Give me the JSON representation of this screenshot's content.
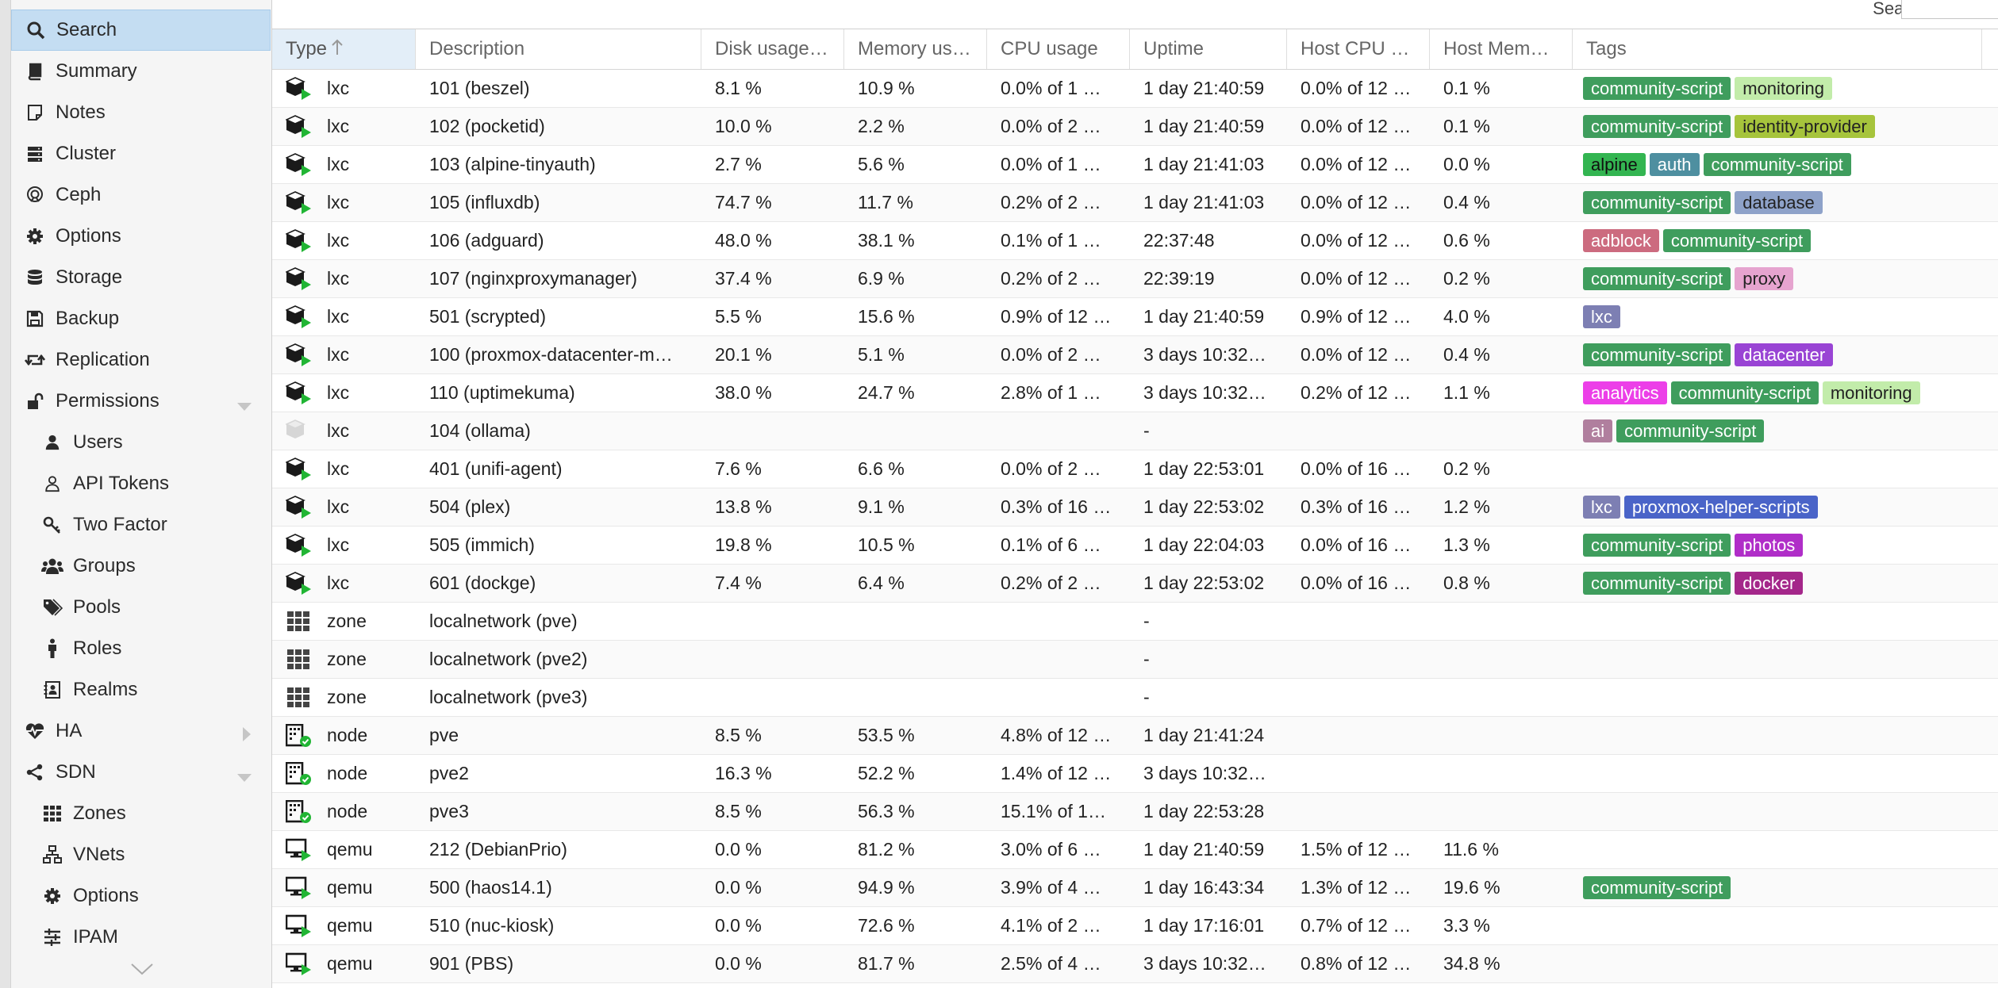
{
  "sidebar": {
    "items": [
      {
        "label": "Search",
        "icon": "search-icon",
        "key": "search",
        "selected": true,
        "level": 0
      },
      {
        "label": "Summary",
        "icon": "book-icon",
        "key": "summary",
        "level": 0
      },
      {
        "label": "Notes",
        "icon": "notes-icon",
        "key": "notes",
        "level": 0
      },
      {
        "label": "Cluster",
        "icon": "server-icon",
        "key": "cluster",
        "level": 0
      },
      {
        "label": "Ceph",
        "icon": "ceph-icon",
        "key": "ceph",
        "level": 0
      },
      {
        "label": "Options",
        "icon": "gear-icon",
        "key": "options",
        "level": 0
      },
      {
        "label": "Storage",
        "icon": "database-icon",
        "key": "storage",
        "level": 0
      },
      {
        "label": "Backup",
        "icon": "floppy-icon",
        "key": "backup",
        "level": 0
      },
      {
        "label": "Replication",
        "icon": "retweet-icon",
        "key": "replication",
        "level": 0
      },
      {
        "label": "Permissions",
        "icon": "unlock-icon",
        "key": "permissions",
        "level": 0,
        "chevron": "down"
      },
      {
        "label": "Users",
        "icon": "user-icon",
        "key": "users",
        "level": 1
      },
      {
        "label": "API Tokens",
        "icon": "user-outline-icon",
        "key": "api-tokens",
        "level": 1
      },
      {
        "label": "Two Factor",
        "icon": "key-icon",
        "key": "two-factor",
        "level": 1
      },
      {
        "label": "Groups",
        "icon": "users-icon",
        "key": "groups",
        "level": 1
      },
      {
        "label": "Pools",
        "icon": "tags-icon",
        "key": "pools",
        "level": 1
      },
      {
        "label": "Roles",
        "icon": "male-icon",
        "key": "roles",
        "level": 1
      },
      {
        "label": "Realms",
        "icon": "address-book-icon",
        "key": "realms",
        "level": 1
      },
      {
        "label": "HA",
        "icon": "heartbeat-icon",
        "key": "ha",
        "level": 0,
        "chevron": "right"
      },
      {
        "label": "SDN",
        "icon": "sdn-icon",
        "key": "sdn",
        "level": 0,
        "chevron": "down"
      },
      {
        "label": "Zones",
        "icon": "th-icon",
        "key": "zones",
        "level": 1
      },
      {
        "label": "VNets",
        "icon": "sitemap-icon",
        "key": "vnets",
        "level": 1
      },
      {
        "label": "Options",
        "icon": "gear-icon",
        "key": "sdn-options",
        "level": 1
      },
      {
        "label": "IPAM",
        "icon": "sliders-icon",
        "key": "ipam",
        "level": 1
      }
    ]
  },
  "toolbar": {
    "search_label": "Search:",
    "search_value": ""
  },
  "grid": {
    "columns": [
      "Type",
      "Description",
      "Disk usage…",
      "Memory us…",
      "CPU usage",
      "Uptime",
      "Host CPU …",
      "Host Mem…",
      "Tags"
    ],
    "sort_column": "Type",
    "rows": [
      {
        "type": "lxc",
        "status": "running",
        "desc": "101 (beszel)",
        "disk": "8.1 %",
        "mem": "10.9 %",
        "cpu": "0.0% of 1 …",
        "uptime": "1 day 21:40:59",
        "hcpu": "0.0% of 12 …",
        "hmem": "0.1 %",
        "tags": [
          {
            "t": "community-script",
            "bg": "#3f9d5d",
            "fg": "#ffffff"
          },
          {
            "t": "monitoring",
            "bg": "#c2ecaa",
            "fg": "#222222"
          }
        ]
      },
      {
        "type": "lxc",
        "status": "running",
        "desc": "102 (pocketid)",
        "disk": "10.0 %",
        "mem": "2.2 %",
        "cpu": "0.0% of 2 …",
        "uptime": "1 day 21:40:59",
        "hcpu": "0.0% of 12 …",
        "hmem": "0.1 %",
        "tags": [
          {
            "t": "community-script",
            "bg": "#3f9d5d",
            "fg": "#ffffff"
          },
          {
            "t": "identity-provider",
            "bg": "#a6c43c",
            "fg": "#222222"
          }
        ]
      },
      {
        "type": "lxc",
        "status": "running",
        "desc": "103 (alpine-tinyauth)",
        "disk": "2.7 %",
        "mem": "5.6 %",
        "cpu": "0.0% of 1 …",
        "uptime": "1 day 21:41:03",
        "hcpu": "0.0% of 12 …",
        "hmem": "0.0 %",
        "tags": [
          {
            "t": "alpine",
            "bg": "#33b551",
            "fg": "#111111"
          },
          {
            "t": "auth",
            "bg": "#4e8fa0",
            "fg": "#ffffff"
          },
          {
            "t": "community-script",
            "bg": "#3f9d5d",
            "fg": "#ffffff"
          }
        ]
      },
      {
        "type": "lxc",
        "status": "running",
        "desc": "105 (influxdb)",
        "disk": "74.7 %",
        "mem": "11.7 %",
        "cpu": "0.2% of 2 …",
        "uptime": "1 day 21:41:03",
        "hcpu": "0.0% of 12 …",
        "hmem": "0.4 %",
        "tags": [
          {
            "t": "community-script",
            "bg": "#3f9d5d",
            "fg": "#ffffff"
          },
          {
            "t": "database",
            "bg": "#8ea2c9",
            "fg": "#222222"
          }
        ]
      },
      {
        "type": "lxc",
        "status": "running",
        "desc": "106 (adguard)",
        "disk": "48.0 %",
        "mem": "38.1 %",
        "cpu": "0.1% of 1 …",
        "uptime": "22:37:48",
        "hcpu": "0.0% of 12 …",
        "hmem": "0.6 %",
        "tags": [
          {
            "t": "adblock",
            "bg": "#cc6b7f",
            "fg": "#ffffff"
          },
          {
            "t": "community-script",
            "bg": "#3f9d5d",
            "fg": "#ffffff"
          }
        ]
      },
      {
        "type": "lxc",
        "status": "running",
        "desc": "107 (nginxproxymanager)",
        "disk": "37.4 %",
        "mem": "6.9 %",
        "cpu": "0.2% of 2 …",
        "uptime": "22:39:19",
        "hcpu": "0.0% of 12 …",
        "hmem": "0.2 %",
        "tags": [
          {
            "t": "community-script",
            "bg": "#3f9d5d",
            "fg": "#ffffff"
          },
          {
            "t": "proxy",
            "bg": "#e6a4cf",
            "fg": "#222222"
          }
        ]
      },
      {
        "type": "lxc",
        "status": "running",
        "desc": "501 (scrypted)",
        "disk": "5.5 %",
        "mem": "15.6 %",
        "cpu": "0.9% of 12 …",
        "uptime": "1 day 21:40:59",
        "hcpu": "0.9% of 12 …",
        "hmem": "4.0 %",
        "tags": [
          {
            "t": "lxc",
            "bg": "#7d7fb3",
            "fg": "#ffffff"
          }
        ]
      },
      {
        "type": "lxc",
        "status": "running",
        "desc": "100 (proxmox-datacenter-m…",
        "disk": "20.1 %",
        "mem": "5.1 %",
        "cpu": "0.0% of 2 …",
        "uptime": "3 days 10:32…",
        "hcpu": "0.0% of 12 …",
        "hmem": "0.4 %",
        "tags": [
          {
            "t": "community-script",
            "bg": "#3f9d5d",
            "fg": "#ffffff"
          },
          {
            "t": "datacenter",
            "bg": "#9944d4",
            "fg": "#ffffff"
          }
        ]
      },
      {
        "type": "lxc",
        "status": "running",
        "desc": "110 (uptimekuma)",
        "disk": "38.0 %",
        "mem": "24.7 %",
        "cpu": "2.8% of 1 …",
        "uptime": "3 days 10:32…",
        "hcpu": "0.2% of 12 …",
        "hmem": "1.1 %",
        "tags": [
          {
            "t": "analytics",
            "bg": "#ec3fe8",
            "fg": "#ffffff"
          },
          {
            "t": "community-script",
            "bg": "#3f9d5d",
            "fg": "#ffffff"
          },
          {
            "t": "monitoring",
            "bg": "#c2ecaa",
            "fg": "#222222"
          }
        ]
      },
      {
        "type": "lxc",
        "status": "stopped",
        "desc": "104 (ollama)",
        "disk": "",
        "mem": "",
        "cpu": "",
        "uptime": "-",
        "hcpu": "",
        "hmem": "",
        "tags": [
          {
            "t": "ai",
            "bg": "#b07f9e",
            "fg": "#ffffff"
          },
          {
            "t": "community-script",
            "bg": "#3f9d5d",
            "fg": "#ffffff"
          }
        ]
      },
      {
        "type": "lxc",
        "status": "running",
        "desc": "401 (unifi-agent)",
        "disk": "7.6 %",
        "mem": "6.6 %",
        "cpu": "0.0% of 2 …",
        "uptime": "1 day 22:53:01",
        "hcpu": "0.0% of 16 …",
        "hmem": "0.2 %",
        "tags": []
      },
      {
        "type": "lxc",
        "status": "running",
        "desc": "504 (plex)",
        "disk": "13.8 %",
        "mem": "9.1 %",
        "cpu": "0.3% of 16 …",
        "uptime": "1 day 22:53:02",
        "hcpu": "0.3% of 16 …",
        "hmem": "1.2 %",
        "tags": [
          {
            "t": "lxc",
            "bg": "#7d7fb3",
            "fg": "#ffffff"
          },
          {
            "t": "proxmox-helper-scripts",
            "bg": "#4a64c8",
            "fg": "#ffffff"
          }
        ]
      },
      {
        "type": "lxc",
        "status": "running",
        "desc": "505 (immich)",
        "disk": "19.8 %",
        "mem": "10.5 %",
        "cpu": "0.1% of 6 …",
        "uptime": "1 day 22:04:03",
        "hcpu": "0.0% of 16 …",
        "hmem": "1.3 %",
        "tags": [
          {
            "t": "community-script",
            "bg": "#3f9d5d",
            "fg": "#ffffff"
          },
          {
            "t": "photos",
            "bg": "#b02ec8",
            "fg": "#ffffff"
          }
        ]
      },
      {
        "type": "lxc",
        "status": "running",
        "desc": "601 (dockge)",
        "disk": "7.4 %",
        "mem": "6.4 %",
        "cpu": "0.2% of 2 …",
        "uptime": "1 day 22:53:02",
        "hcpu": "0.0% of 16 …",
        "hmem": "0.8 %",
        "tags": [
          {
            "t": "community-script",
            "bg": "#3f9d5d",
            "fg": "#ffffff"
          },
          {
            "t": "docker",
            "bg": "#a4278a",
            "fg": "#ffffff"
          }
        ]
      },
      {
        "type": "zone",
        "status": "",
        "desc": "localnetwork (pve)",
        "disk": "",
        "mem": "",
        "cpu": "",
        "uptime": "-",
        "hcpu": "",
        "hmem": "",
        "tags": []
      },
      {
        "type": "zone",
        "status": "",
        "desc": "localnetwork (pve2)",
        "disk": "",
        "mem": "",
        "cpu": "",
        "uptime": "-",
        "hcpu": "",
        "hmem": "",
        "tags": []
      },
      {
        "type": "zone",
        "status": "",
        "desc": "localnetwork (pve3)",
        "disk": "",
        "mem": "",
        "cpu": "",
        "uptime": "-",
        "hcpu": "",
        "hmem": "",
        "tags": []
      },
      {
        "type": "node",
        "status": "online",
        "desc": "pve",
        "disk": "8.5 %",
        "mem": "53.5 %",
        "cpu": "4.8% of 12 …",
        "uptime": "1 day 21:41:24",
        "hcpu": "",
        "hmem": "",
        "tags": []
      },
      {
        "type": "node",
        "status": "online",
        "desc": "pve2",
        "disk": "16.3 %",
        "mem": "52.2 %",
        "cpu": "1.4% of 12 …",
        "uptime": "3 days 10:32…",
        "hcpu": "",
        "hmem": "",
        "tags": []
      },
      {
        "type": "node",
        "status": "online",
        "desc": "pve3",
        "disk": "8.5 %",
        "mem": "56.3 %",
        "cpu": "15.1% of 1…",
        "uptime": "1 day 22:53:28",
        "hcpu": "",
        "hmem": "",
        "tags": []
      },
      {
        "type": "qemu",
        "status": "running",
        "desc": "212 (DebianPrio)",
        "disk": "0.0 %",
        "mem": "81.2 %",
        "cpu": "3.0% of 6 …",
        "uptime": "1 day 21:40:59",
        "hcpu": "1.5% of 12 …",
        "hmem": "11.6 %",
        "tags": []
      },
      {
        "type": "qemu",
        "status": "running",
        "desc": "500 (haos14.1)",
        "disk": "0.0 %",
        "mem": "94.9 %",
        "cpu": "3.9% of 4 …",
        "uptime": "1 day 16:43:34",
        "hcpu": "1.3% of 12 …",
        "hmem": "19.6 %",
        "tags": [
          {
            "t": "community-script",
            "bg": "#3f9d5d",
            "fg": "#ffffff"
          }
        ]
      },
      {
        "type": "qemu",
        "status": "running",
        "desc": "510 (nuc-kiosk)",
        "disk": "0.0 %",
        "mem": "72.6 %",
        "cpu": "4.1% of 2 …",
        "uptime": "1 day 17:16:01",
        "hcpu": "0.7% of 12 …",
        "hmem": "3.3 %",
        "tags": []
      },
      {
        "type": "qemu",
        "status": "running",
        "desc": "901 (PBS)",
        "disk": "0.0 %",
        "mem": "81.7 %",
        "cpu": "2.5% of 4 …",
        "uptime": "3 days 10:32…",
        "hcpu": "0.8% of 12 …",
        "hmem": "34.8 %",
        "tags": []
      }
    ]
  },
  "colors": {
    "selection": "#c4ddf2",
    "running": "#21b534",
    "online": "#21b534",
    "header_sorted": "#e3eef8"
  }
}
